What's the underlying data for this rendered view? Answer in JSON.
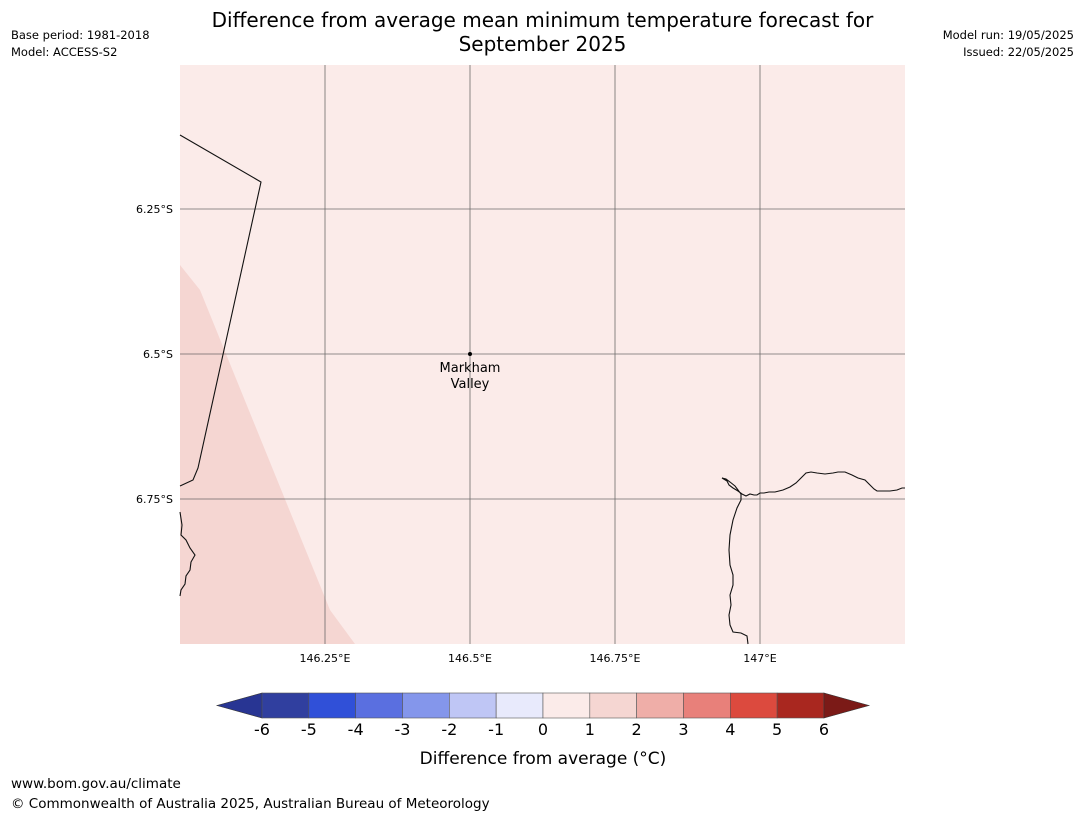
{
  "header": {
    "title_line1": "Difference from average mean minimum temperature forecast for",
    "title_line2": "September 2025",
    "base_period": "Base period: 1981-2018",
    "model": "Model: ACCESS-S2",
    "model_run": "Model run: 19/05/2025",
    "issued": "Issued: 22/05/2025"
  },
  "map": {
    "lon_ticks": [
      {
        "value": 146.25,
        "label": "146.25°E"
      },
      {
        "value": 146.5,
        "label": "146.5°E"
      },
      {
        "value": 146.75,
        "label": "146.75°E"
      },
      {
        "value": 147.0,
        "label": "147°E"
      }
    ],
    "lat_ticks": [
      {
        "value": -6.25,
        "label": "6.25°S"
      },
      {
        "value": -6.5,
        "label": "6.5°S"
      },
      {
        "value": -6.75,
        "label": "6.75°S"
      }
    ],
    "place": {
      "name_line1": "Markham",
      "name_line2": "Valley",
      "lon": 146.5,
      "lat": -6.5
    },
    "fill_colors": {
      "band_0_1": "#fbebe9",
      "band_1_2": "#f5d6d2"
    }
  },
  "colorbar": {
    "title": "Difference from average (°C)",
    "tick_labels": [
      "-6",
      "-5",
      "-4",
      "-3",
      "-2",
      "-1",
      "0",
      "1",
      "2",
      "3",
      "4",
      "5",
      "6"
    ],
    "colors": [
      "#283593",
      "#303f9f",
      "#3050d8",
      "#5a6fe0",
      "#8496eb",
      "#bfc6f5",
      "#e8eafc",
      "#fbebe9",
      "#f5d6d2",
      "#efaea8",
      "#e8807a",
      "#dc4a3e",
      "#a9271f",
      "#7b1a17"
    ]
  },
  "footer": {
    "url": "www.bom.gov.au/climate",
    "copyright": "© Commonwealth of Australia 2025, Australian Bureau of Meteorology"
  }
}
